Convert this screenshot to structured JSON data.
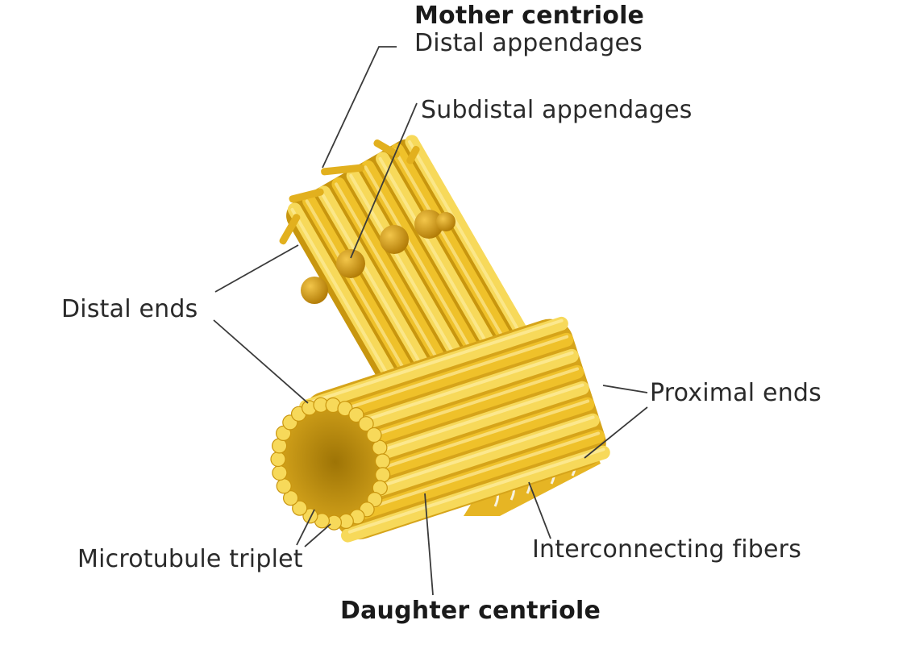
{
  "labels": {
    "mother_centriole": "Mother centriole",
    "distal_appendages": "Distal appendages",
    "subdistal_appendages": "Subdistal appendages",
    "distal_ends": "Distal ends",
    "proximal_ends": "Proximal ends",
    "interconnecting_fibers": "Interconnecting fibers",
    "microtubule_triplet": "Microtubule triplet",
    "daughter_centriole": "Daughter centriole"
  },
  "colors": {
    "tube_light": "#F7D95A",
    "tube_mid": "#EFC12A",
    "tube_dark": "#C9950E",
    "inner_shadow": "#B5850A",
    "appendage": "#D9A515",
    "leader_line": "#3a3a3a",
    "fiber": "#f4f0e2",
    "text": "#2a2a2a"
  }
}
